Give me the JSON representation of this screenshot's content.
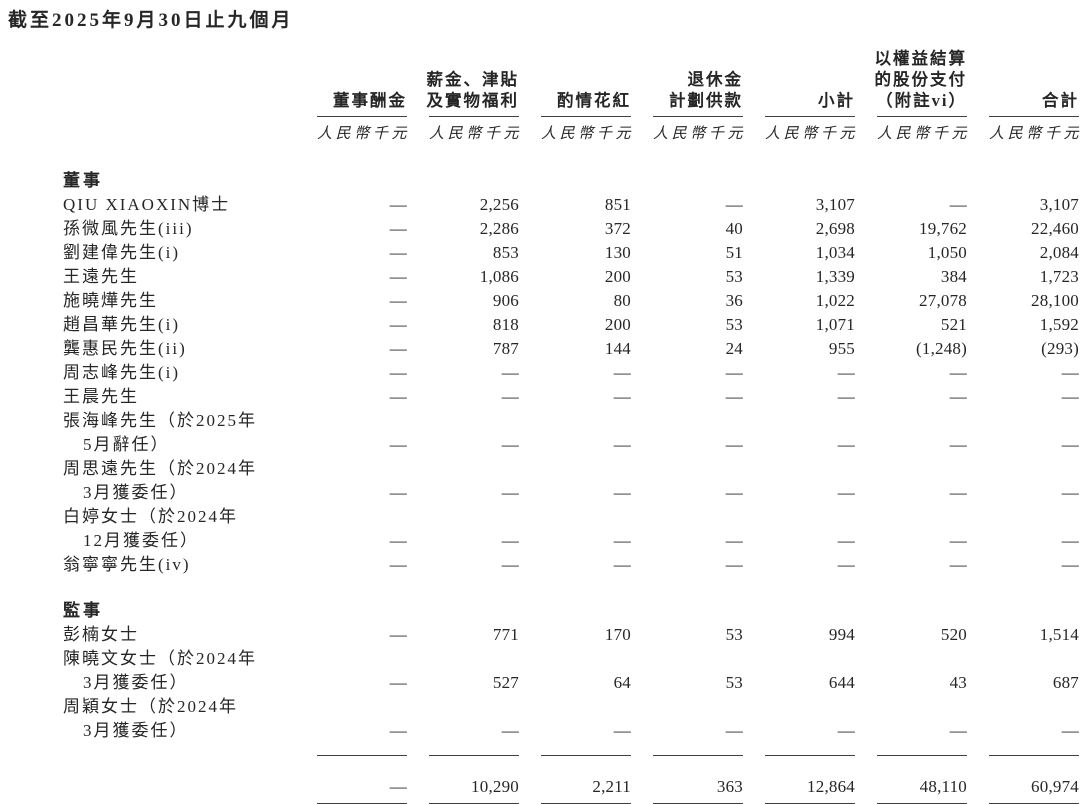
{
  "title": "截至2025年9月30日止九個月",
  "colors": {
    "text": "#262626",
    "rule": "#3f3f3f",
    "background": "#ffffff"
  },
  "table": {
    "columns": [
      {
        "label_lines": [
          "董事酬金"
        ],
        "unit": "人民幣千元"
      },
      {
        "label_lines": [
          "薪金、津貼",
          "及實物福利"
        ],
        "unit": "人民幣千元"
      },
      {
        "label_lines": [
          "酌情花紅"
        ],
        "unit": "人民幣千元"
      },
      {
        "label_lines": [
          "退休金",
          "計劃供款"
        ],
        "unit": "人民幣千元"
      },
      {
        "label_lines": [
          "小計"
        ],
        "unit": "人民幣千元"
      },
      {
        "label_lines": [
          "以權益結算",
          "的股份支付",
          "（附註vi）"
        ],
        "unit": "人民幣千元"
      },
      {
        "label_lines": [
          "合計"
        ],
        "unit": "人民幣千元"
      }
    ],
    "sections": [
      {
        "header": "董事",
        "rows": [
          {
            "name_lines": [
              "QIU XIAOXIN博士"
            ],
            "values": [
              "—",
              "2,256",
              "851",
              "—",
              "3,107",
              "—",
              "3,107"
            ]
          },
          {
            "name_lines": [
              "孫微風先生(iii)"
            ],
            "values": [
              "—",
              "2,286",
              "372",
              "40",
              "2,698",
              "19,762",
              "22,460"
            ]
          },
          {
            "name_lines": [
              "劉建偉先生(i)"
            ],
            "values": [
              "—",
              "853",
              "130",
              "51",
              "1,034",
              "1,050",
              "2,084"
            ]
          },
          {
            "name_lines": [
              "王遠先生"
            ],
            "values": [
              "—",
              "1,086",
              "200",
              "53",
              "1,339",
              "384",
              "1,723"
            ]
          },
          {
            "name_lines": [
              "施曉燁先生"
            ],
            "values": [
              "—",
              "906",
              "80",
              "36",
              "1,022",
              "27,078",
              "28,100"
            ]
          },
          {
            "name_lines": [
              "趙昌華先生(i)"
            ],
            "values": [
              "—",
              "818",
              "200",
              "53",
              "1,071",
              "521",
              "1,592"
            ]
          },
          {
            "name_lines": [
              "龔惠民先生(ii)"
            ],
            "values": [
              "—",
              "787",
              "144",
              "24",
              "955",
              "(1,248)",
              "(293)"
            ]
          },
          {
            "name_lines": [
              "周志峰先生(i)"
            ],
            "values": [
              "—",
              "—",
              "—",
              "—",
              "—",
              "—",
              "—"
            ]
          },
          {
            "name_lines": [
              "王晨先生"
            ],
            "values": [
              "—",
              "—",
              "—",
              "—",
              "—",
              "—",
              "—"
            ]
          },
          {
            "name_lines": [
              "張海峰先生（於2025年",
              "5月辭任）"
            ],
            "values": [
              "—",
              "—",
              "—",
              "—",
              "—",
              "—",
              "—"
            ]
          },
          {
            "name_lines": [
              "周思遠先生（於2024年",
              "3月獲委任）"
            ],
            "values": [
              "—",
              "—",
              "—",
              "—",
              "—",
              "—",
              "—"
            ]
          },
          {
            "name_lines": [
              "白婷女士（於2024年",
              "12月獲委任）"
            ],
            "values": [
              "—",
              "—",
              "—",
              "—",
              "—",
              "—",
              "—"
            ]
          },
          {
            "name_lines": [
              "翁寧寧先生(iv)"
            ],
            "values": [
              "—",
              "—",
              "—",
              "—",
              "—",
              "—",
              "—"
            ]
          }
        ]
      },
      {
        "header": "監事",
        "rows": [
          {
            "name_lines": [
              "彭楠女士"
            ],
            "values": [
              "—",
              "771",
              "170",
              "53",
              "994",
              "520",
              "1,514"
            ]
          },
          {
            "name_lines": [
              "陳曉文女士（於2024年",
              "3月獲委任）"
            ],
            "values": [
              "—",
              "527",
              "64",
              "53",
              "644",
              "43",
              "687"
            ]
          },
          {
            "name_lines": [
              "周穎女士（於2024年",
              "3月獲委任）"
            ],
            "values": [
              "—",
              "—",
              "—",
              "—",
              "—",
              "—",
              "—"
            ]
          }
        ]
      }
    ],
    "total_row": {
      "values": [
        "—",
        "10,290",
        "2,211",
        "363",
        "12,864",
        "48,110",
        "60,974"
      ]
    }
  }
}
